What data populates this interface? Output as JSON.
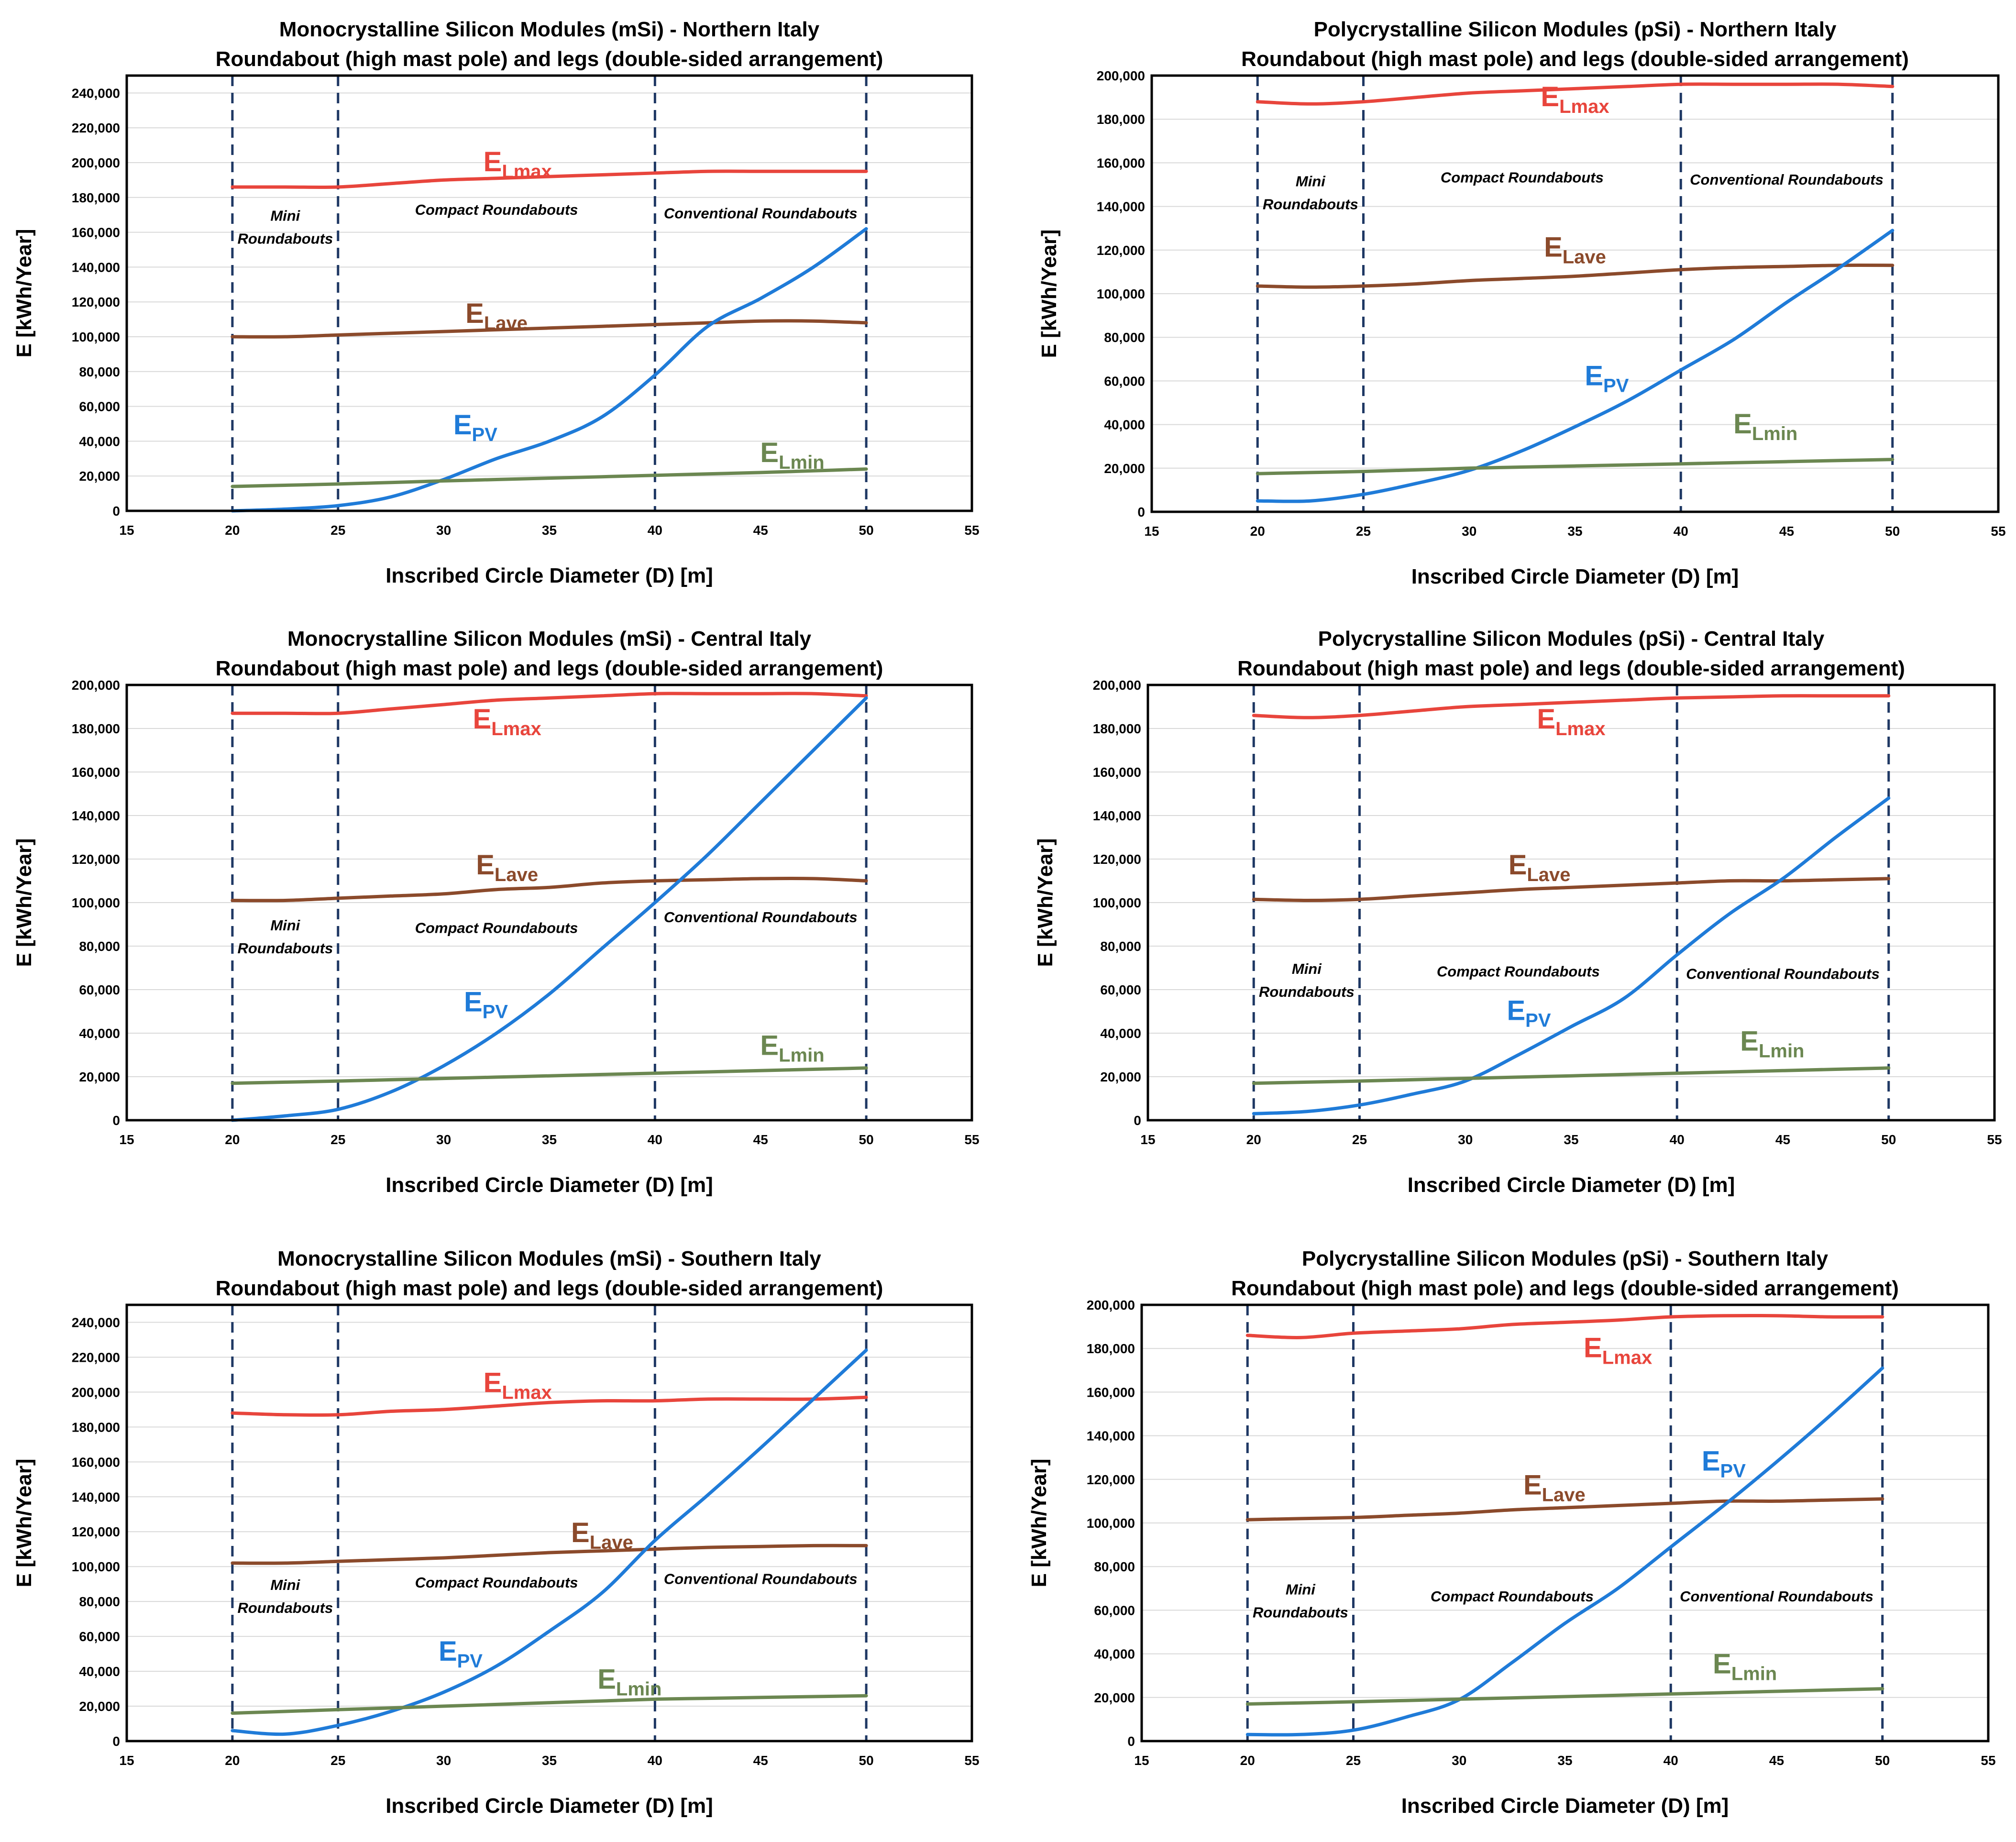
{
  "xlabel": "Inscribed Circle Diameter (D) [m]",
  "ylabel": "E [kWh/Year]",
  "zone_labels": {
    "mini_line1": "Mini",
    "mini_line2": "Roundabouts",
    "compact": "Compact Roundabouts",
    "conventional": "Conventional Roundabouts"
  },
  "colors": {
    "ELmax": "#e8453c",
    "ELave": "#8b4a2b",
    "EPV": "#1f7bd8",
    "ELmin": "#6b8751",
    "dash": "#1f3864"
  },
  "chart_data": [
    {
      "type": "line",
      "title": "Monocrystalline Silicon Modules (mSi) - Northern Italy",
      "subtitle": "Roundabout (high mast pole) and legs (double-sided arrangement)",
      "xlabel": "Inscribed Circle Diameter (D) [m]",
      "ylabel": "E [kWh/Year]",
      "xlim": [
        15,
        55
      ],
      "ylim": [
        0,
        250000
      ],
      "xticks": [
        15,
        20,
        25,
        30,
        35,
        40,
        45,
        50,
        55
      ],
      "yticks": [
        0,
        20000,
        40000,
        60000,
        80000,
        100000,
        120000,
        140000,
        160000,
        180000,
        200000,
        220000,
        240000
      ],
      "boundaries": [
        20,
        25,
        40,
        50
      ],
      "x": [
        20,
        22.5,
        25,
        27.5,
        30,
        32.5,
        35,
        37.5,
        40,
        42.5,
        45,
        47.5,
        50
      ],
      "series": [
        {
          "key": "ELmax",
          "name": "E",
          "sub": "Lmax",
          "values": [
            186000,
            186000,
            186000,
            188000,
            190000,
            191000,
            192000,
            193000,
            194000,
            195000,
            195000,
            195000,
            195000
          ]
        },
        {
          "key": "ELave",
          "name": "E",
          "sub": "Lave",
          "values": [
            100000,
            100000,
            101000,
            102000,
            103000,
            104000,
            105000,
            106000,
            107000,
            108000,
            109000,
            109000,
            108000
          ]
        },
        {
          "key": "EPV",
          "name": "E",
          "sub": "PV",
          "values": [
            0,
            1000,
            3000,
            8000,
            18000,
            30000,
            40000,
            54000,
            78000,
            106000,
            122000,
            140000,
            162000
          ]
        },
        {
          "key": "ELmin",
          "name": "E",
          "sub": "Lmin",
          "values": [
            14000,
            14700,
            15400,
            16300,
            17200,
            18000,
            18800,
            19600,
            20400,
            21200,
            22000,
            23000,
            24000
          ]
        }
      ],
      "label_pos": {
        "ELmax": [
          33.5,
          195000
        ],
        "ELave": [
          32.5,
          108000
        ],
        "EPV": [
          31.5,
          44000
        ],
        "ELmin": [
          46.5,
          28000
        ]
      },
      "zone_pos": {
        "mini": [
          22.5,
          160000
        ],
        "compact": [
          32.5,
          170000
        ],
        "conventional": [
          45,
          168000
        ]
      }
    },
    {
      "type": "line",
      "title": "Polycrystalline Silicon Modules (pSi) - Northern Italy",
      "subtitle": "Roundabout (high mast pole) and legs (double-sided arrangement)",
      "xlabel": "Inscribed Circle Diameter (D) [m]",
      "ylabel": "E [kWh/Year]",
      "xlim": [
        15,
        55
      ],
      "ylim": [
        0,
        200000
      ],
      "xticks": [
        15,
        20,
        25,
        30,
        35,
        40,
        45,
        50,
        55
      ],
      "yticks": [
        0,
        20000,
        40000,
        60000,
        80000,
        100000,
        120000,
        140000,
        160000,
        180000,
        200000
      ],
      "boundaries": [
        20,
        25,
        40,
        50
      ],
      "x": [
        20,
        22.5,
        25,
        27.5,
        30,
        32.5,
        35,
        37.5,
        40,
        42.5,
        45,
        47.5,
        50
      ],
      "series": [
        {
          "key": "ELmax",
          "name": "E",
          "sub": "Lmax",
          "values": [
            188000,
            187000,
            188000,
            190000,
            192000,
            193000,
            194000,
            195000,
            196000,
            196000,
            196000,
            196000,
            195000
          ]
        },
        {
          "key": "ELave",
          "name": "E",
          "sub": "Lave",
          "values": [
            103500,
            103000,
            103500,
            104500,
            106000,
            107000,
            108000,
            109500,
            111000,
            112000,
            112500,
            113000,
            113000
          ]
        },
        {
          "key": "EPV",
          "name": "E",
          "sub": "PV",
          "values": [
            5000,
            5000,
            8000,
            13000,
            19000,
            28000,
            39000,
            51000,
            65000,
            79000,
            96000,
            112000,
            129000
          ]
        },
        {
          "key": "ELmin",
          "name": "E",
          "sub": "Lmin",
          "values": [
            17500,
            18000,
            18500,
            19200,
            20000,
            20500,
            21000,
            21500,
            22000,
            22500,
            23000,
            23500,
            24000
          ]
        }
      ],
      "label_pos": {
        "ELmax": [
          35,
          186000
        ],
        "ELave": [
          35,
          117000
        ],
        "EPV": [
          36.5,
          58000
        ],
        "ELmin": [
          44,
          36000
        ]
      },
      "zone_pos": {
        "mini": [
          22.5,
          144000
        ],
        "compact": [
          32.5,
          151000
        ],
        "conventional": [
          45,
          150000
        ]
      }
    },
    {
      "type": "line",
      "title": "Monocrystalline Silicon Modules (mSi) - Central Italy",
      "subtitle": "Roundabout (high mast pole) and legs (double-sided arrangement)",
      "xlabel": "Inscribed Circle Diameter (D) [m]",
      "ylabel": "E [kWh/Year]",
      "xlim": [
        15,
        55
      ],
      "ylim": [
        0,
        200000
      ],
      "xticks": [
        15,
        20,
        25,
        30,
        35,
        40,
        45,
        50,
        55
      ],
      "yticks": [
        0,
        20000,
        40000,
        60000,
        80000,
        100000,
        120000,
        140000,
        160000,
        180000,
        200000
      ],
      "boundaries": [
        20,
        25,
        40,
        50
      ],
      "x": [
        20,
        22.5,
        25,
        27.5,
        30,
        32.5,
        35,
        37.5,
        40,
        42.5,
        45,
        47.5,
        50
      ],
      "series": [
        {
          "key": "ELmax",
          "name": "E",
          "sub": "Lmax",
          "values": [
            187000,
            187000,
            187000,
            189000,
            191000,
            193000,
            194000,
            195000,
            196000,
            196000,
            196000,
            196000,
            195000
          ]
        },
        {
          "key": "ELave",
          "name": "E",
          "sub": "Lave",
          "values": [
            101000,
            101000,
            102000,
            103000,
            104000,
            106000,
            107000,
            109000,
            110000,
            110500,
            111000,
            111000,
            110000
          ]
        },
        {
          "key": "EPV",
          "name": "E",
          "sub": "PV",
          "values": [
            0,
            2000,
            5000,
            13000,
            25000,
            40000,
            58000,
            79000,
            100000,
            122000,
            146000,
            170000,
            194000
          ]
        },
        {
          "key": "ELmin",
          "name": "E",
          "sub": "Lmin",
          "values": [
            17000,
            17500,
            18000,
            18600,
            19200,
            19800,
            20400,
            21000,
            21600,
            22200,
            22800,
            23400,
            24000
          ]
        }
      ],
      "label_pos": {
        "ELmax": [
          33,
          180000
        ],
        "ELave": [
          33,
          113000
        ],
        "EPV": [
          32,
          50000
        ],
        "ELmin": [
          46.5,
          30000
        ]
      },
      "zone_pos": {
        "mini": [
          22.5,
          82000
        ],
        "compact": [
          32.5,
          86000
        ],
        "conventional": [
          45,
          91000
        ]
      }
    },
    {
      "type": "line",
      "title": "Polycrystalline Silicon Modules (pSi) - Central Italy",
      "subtitle": "Roundabout (high mast pole) and legs (double-sided arrangement)",
      "xlabel": "Inscribed Circle Diameter (D) [m]",
      "ylabel": "E [kWh/Year]",
      "xlim": [
        15,
        55
      ],
      "ylim": [
        0,
        200000
      ],
      "xticks": [
        15,
        20,
        25,
        30,
        35,
        40,
        45,
        50,
        55
      ],
      "yticks": [
        0,
        20000,
        40000,
        60000,
        80000,
        100000,
        120000,
        140000,
        160000,
        180000,
        200000
      ],
      "boundaries": [
        20,
        25,
        40,
        50
      ],
      "x": [
        20,
        22.5,
        25,
        27.5,
        30,
        32.5,
        35,
        37.5,
        40,
        42.5,
        45,
        47.5,
        50
      ],
      "series": [
        {
          "key": "ELmax",
          "name": "E",
          "sub": "Lmax",
          "values": [
            186000,
            185000,
            186000,
            188000,
            190000,
            191000,
            192000,
            193000,
            194000,
            194500,
            195000,
            195000,
            195000
          ]
        },
        {
          "key": "ELave",
          "name": "E",
          "sub": "Lave",
          "values": [
            101500,
            101000,
            101500,
            103000,
            104500,
            106000,
            107000,
            108000,
            109000,
            110000,
            110000,
            110500,
            111000
          ]
        },
        {
          "key": "EPV",
          "name": "E",
          "sub": "PV",
          "values": [
            3000,
            4000,
            7000,
            12000,
            18000,
            30000,
            43000,
            56000,
            76000,
            95000,
            111000,
            130000,
            148000
          ]
        },
        {
          "key": "ELmin",
          "name": "E",
          "sub": "Lmin",
          "values": [
            17000,
            17500,
            18000,
            18600,
            19200,
            19800,
            20400,
            21000,
            21600,
            22200,
            22800,
            23400,
            24000
          ]
        }
      ],
      "label_pos": {
        "ELmax": [
          35,
          180000
        ],
        "ELave": [
          33.5,
          113000
        ],
        "EPV": [
          33,
          46000
        ],
        "ELmin": [
          44.5,
          32000
        ]
      },
      "zone_pos": {
        "mini": [
          22.5,
          62000
        ],
        "compact": [
          32.5,
          66000
        ],
        "conventional": [
          45,
          65000
        ]
      }
    },
    {
      "type": "line",
      "title": "Monocrystalline Silicon Modules (mSi) - Southern Italy",
      "subtitle": "Roundabout (high mast pole) and legs (double-sided arrangement)",
      "xlabel": "Inscribed Circle Diameter (D) [m]",
      "ylabel": "E [kWh/Year]",
      "xlim": [
        15,
        55
      ],
      "ylim": [
        0,
        250000
      ],
      "xticks": [
        15,
        20,
        25,
        30,
        35,
        40,
        45,
        50,
        55
      ],
      "yticks": [
        0,
        20000,
        40000,
        60000,
        80000,
        100000,
        120000,
        140000,
        160000,
        180000,
        200000,
        220000,
        240000
      ],
      "boundaries": [
        20,
        25,
        40,
        50
      ],
      "x": [
        20,
        22.5,
        25,
        27.5,
        30,
        32.5,
        35,
        37.5,
        40,
        42.5,
        45,
        47.5,
        50
      ],
      "series": [
        {
          "key": "ELmax",
          "name": "E",
          "sub": "Lmax",
          "values": [
            188000,
            187000,
            187000,
            189000,
            190000,
            192000,
            194000,
            195000,
            195000,
            196000,
            196000,
            196000,
            197000
          ]
        },
        {
          "key": "ELave",
          "name": "E",
          "sub": "Lave",
          "values": [
            102000,
            102000,
            103000,
            104000,
            105000,
            106500,
            108000,
            109000,
            110000,
            111000,
            111500,
            112000,
            112000
          ]
        },
        {
          "key": "EPV",
          "name": "E",
          "sub": "PV",
          "values": [
            6000,
            4000,
            9000,
            17000,
            28000,
            43000,
            63000,
            85000,
            115000,
            141000,
            168000,
            196000,
            224000
          ]
        },
        {
          "key": "ELmin",
          "name": "E",
          "sub": "Lmin",
          "values": [
            16000,
            17000,
            18000,
            19000,
            20000,
            21000,
            22000,
            23000,
            24000,
            24500,
            25000,
            25500,
            26000
          ]
        }
      ],
      "label_pos": {
        "ELmax": [
          33.5,
          200000
        ],
        "ELave": [
          37.5,
          114000
        ],
        "EPV": [
          30.8,
          46000
        ],
        "ELmin": [
          38.8,
          30000
        ]
      },
      "zone_pos": {
        "mini": [
          22.5,
          80000
        ],
        "compact": [
          32.5,
          88000
        ],
        "conventional": [
          45,
          90000
        ]
      }
    },
    {
      "type": "line",
      "title": "Polycrystalline Silicon Modules (pSi) - Southern Italy",
      "subtitle": "Roundabout (high mast pole) and legs (double-sided arrangement)",
      "xlabel": "Inscribed Circle Diameter (D) [m]",
      "ylabel": "E [kWh/Year]",
      "xlim": [
        15,
        55
      ],
      "ylim": [
        0,
        200000
      ],
      "xticks": [
        15,
        20,
        25,
        30,
        35,
        40,
        45,
        50,
        55
      ],
      "yticks": [
        0,
        20000,
        40000,
        60000,
        80000,
        100000,
        120000,
        140000,
        160000,
        180000,
        200000
      ],
      "boundaries": [
        20,
        25,
        40,
        50
      ],
      "x": [
        20,
        22.5,
        25,
        27.5,
        30,
        32.5,
        35,
        37.5,
        40,
        42.5,
        45,
        47.5,
        50
      ],
      "series": [
        {
          "key": "ELmax",
          "name": "E",
          "sub": "Lmax",
          "values": [
            186000,
            185000,
            187000,
            188000,
            189000,
            191000,
            192000,
            193000,
            194500,
            195000,
            195000,
            194500,
            194500
          ]
        },
        {
          "key": "ELave",
          "name": "E",
          "sub": "Lave",
          "values": [
            101500,
            102000,
            102500,
            103500,
            104500,
            106000,
            107000,
            108000,
            109000,
            110000,
            110000,
            110500,
            111000
          ]
        },
        {
          "key": "EPV",
          "name": "E",
          "sub": "PV",
          "values": [
            3000,
            3000,
            5000,
            11000,
            19000,
            36000,
            54000,
            70000,
            89000,
            108000,
            128000,
            149000,
            171000
          ]
        },
        {
          "key": "ELmin",
          "name": "E",
          "sub": "Lmin",
          "values": [
            17000,
            17500,
            18000,
            18600,
            19200,
            19800,
            20400,
            21000,
            21600,
            22200,
            22800,
            23400,
            24000
          ]
        }
      ],
      "label_pos": {
        "ELmax": [
          37.5,
          176000
        ],
        "ELave": [
          34.5,
          113000
        ],
        "EPV": [
          42.5,
          124000
        ],
        "ELmin": [
          43.5,
          31000
        ]
      },
      "zone_pos": {
        "mini": [
          22.5,
          62000
        ],
        "compact": [
          32.5,
          64000
        ],
        "conventional": [
          45,
          64000
        ]
      }
    }
  ]
}
